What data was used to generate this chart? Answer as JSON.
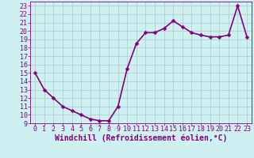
{
  "x": [
    0,
    1,
    2,
    3,
    4,
    5,
    6,
    7,
    8,
    9,
    10,
    11,
    12,
    13,
    14,
    15,
    16,
    17,
    18,
    19,
    20,
    21,
    22,
    23
  ],
  "y": [
    15.0,
    13.0,
    12.0,
    11.0,
    10.5,
    10.0,
    9.5,
    9.3,
    9.3,
    11.0,
    15.5,
    18.5,
    19.8,
    19.8,
    20.3,
    21.2,
    20.5,
    19.8,
    19.5,
    19.3,
    19.3,
    19.5,
    23.0,
    19.3
  ],
  "line_color": "#800080",
  "marker": "D",
  "marker_size": 2.5,
  "bg_color": "#cff0f0",
  "grid_color": "#b0d0d0",
  "xlabel": "Windchill (Refroidissement éolien,°C)",
  "ylabel": "",
  "xlim": [
    -0.5,
    23.5
  ],
  "ylim": [
    9,
    23.5
  ],
  "yticks": [
    9,
    10,
    11,
    12,
    13,
    14,
    15,
    16,
    17,
    18,
    19,
    20,
    21,
    22,
    23
  ],
  "xticks": [
    0,
    1,
    2,
    3,
    4,
    5,
    6,
    7,
    8,
    9,
    10,
    11,
    12,
    13,
    14,
    15,
    16,
    17,
    18,
    19,
    20,
    21,
    22,
    23
  ],
  "label_color": "#800080",
  "tick_color": "#800080",
  "font_family": "monospace",
  "xlabel_fontsize": 7.0,
  "tick_fontsize": 6.0,
  "line_width": 1.2
}
